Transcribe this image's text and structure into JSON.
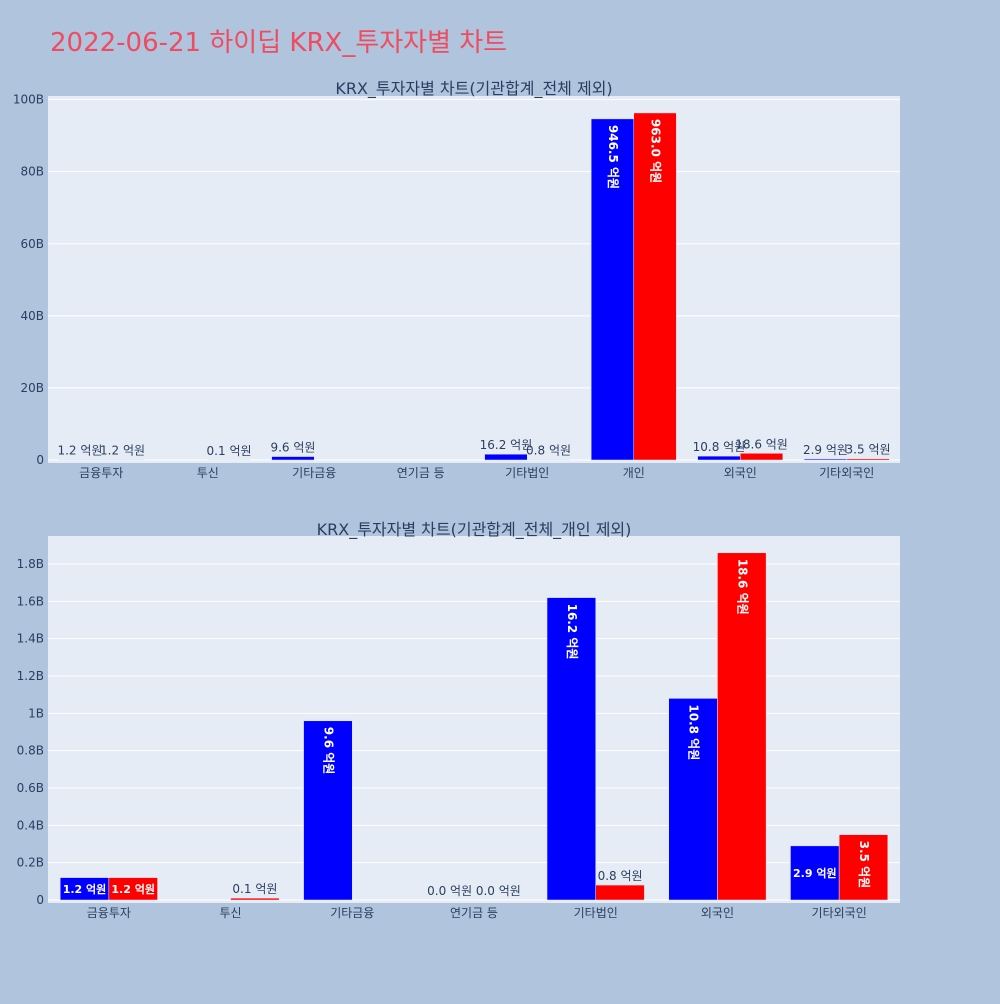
{
  "page": {
    "title": "2022-06-21 하이딥 KRX_투자자별 차트",
    "colors": {
      "background": "#b0c4de",
      "plot_bg": "#e5ecf6",
      "title": "#ef4c5f",
      "buy": "#0000ff",
      "sell": "#ff0000"
    }
  },
  "chart_data": [
    {
      "type": "bar",
      "title": "KRX_투자자별 차트(기관합계_전체 제외)",
      "categories": [
        "금융투자",
        "투신",
        "기타금융",
        "연기금 등",
        "기타법인",
        "개인",
        "외국인",
        "기타외국인"
      ],
      "series": [
        {
          "color": "#0000ff",
          "values": [
            120000000,
            0,
            960000000,
            0,
            1620000000,
            94650000000,
            1080000000,
            290000000
          ],
          "labels": [
            "1.2 억원",
            "",
            "9.6 억원",
            "",
            "16.2 억원",
            "946.5 억원",
            "10.8 억원",
            "2.9 억원"
          ]
        },
        {
          "color": "#ff0000",
          "values": [
            120000000,
            10000000,
            0,
            0,
            80000000,
            96300000000,
            1860000000,
            350000000
          ],
          "labels": [
            "1.2 억원",
            "0.1 억원",
            "",
            "",
            "0.8 억원",
            "963.0 억원",
            "18.6 억원",
            "3.5 억원"
          ]
        }
      ],
      "ylim": [
        0,
        101000000000
      ],
      "yticks": [
        0,
        20000000000,
        40000000000,
        60000000000,
        80000000000,
        100000000000
      ],
      "ytick_labels": [
        "0",
        "20B",
        "40B",
        "60B",
        "80B",
        "100B"
      ],
      "grid": true
    },
    {
      "type": "bar",
      "title": "KRX_투자자별 차트(기관합계_전체_개인 제외)",
      "categories": [
        "금융투자",
        "투신",
        "기타금융",
        "연기금 등",
        "기타법인",
        "외국인",
        "기타외국인"
      ],
      "series": [
        {
          "color": "#0000ff",
          "values": [
            120000000,
            0,
            960000000,
            0,
            1620000000,
            1080000000,
            290000000
          ],
          "labels": [
            "1.2 억원",
            "",
            "9.6 억원",
            "0.0 억원",
            "16.2 억원",
            "10.8 억원",
            "2.9 억원"
          ]
        },
        {
          "color": "#ff0000",
          "values": [
            120000000,
            10000000,
            0,
            0,
            80000000,
            1860000000,
            350000000
          ],
          "labels": [
            "1.2 억원",
            "0.1 억원",
            "",
            "0.0 억원",
            "0.8 억원",
            "18.6 억원",
            "3.5 억원"
          ]
        }
      ],
      "ylim": [
        0,
        1950000000
      ],
      "yticks": [
        0,
        200000000,
        400000000,
        600000000,
        800000000,
        1000000000,
        1200000000,
        1400000000,
        1600000000,
        1800000000
      ],
      "ytick_labels": [
        "0",
        "0.2B",
        "0.4B",
        "0.6B",
        "0.8B",
        "1B",
        "1.2B",
        "1.4B",
        "1.6B",
        "1.8B"
      ],
      "grid": true
    }
  ]
}
